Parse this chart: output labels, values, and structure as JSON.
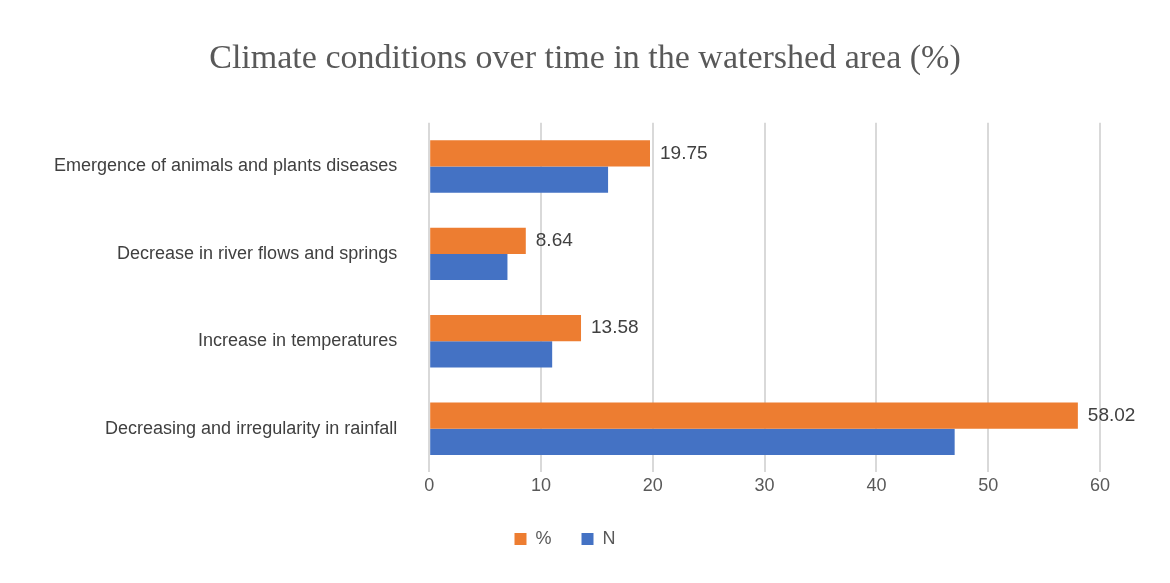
{
  "chart_data": {
    "type": "bar",
    "orientation": "horizontal",
    "title": "Climate conditions over time in the watershed area (%)",
    "categories": [
      "Emergence of animals and plants diseases",
      "Decrease in river flows and springs",
      "Increase in temperatures",
      "Decreasing and irregularity in rainfall"
    ],
    "series": [
      {
        "name": "%",
        "color": "#ed7d31",
        "values": [
          19.75,
          8.64,
          13.58,
          58.02
        ],
        "value_labels": [
          "19.75",
          "8.64",
          "13.58",
          "58.02"
        ]
      },
      {
        "name": "N",
        "color": "#4472c4",
        "values": [
          16,
          7,
          11,
          47
        ]
      }
    ],
    "xlim": [
      0,
      60
    ],
    "xticks": [
      0,
      10,
      20,
      30,
      40,
      50,
      60
    ],
    "grid": "x",
    "legend": "bottom"
  }
}
